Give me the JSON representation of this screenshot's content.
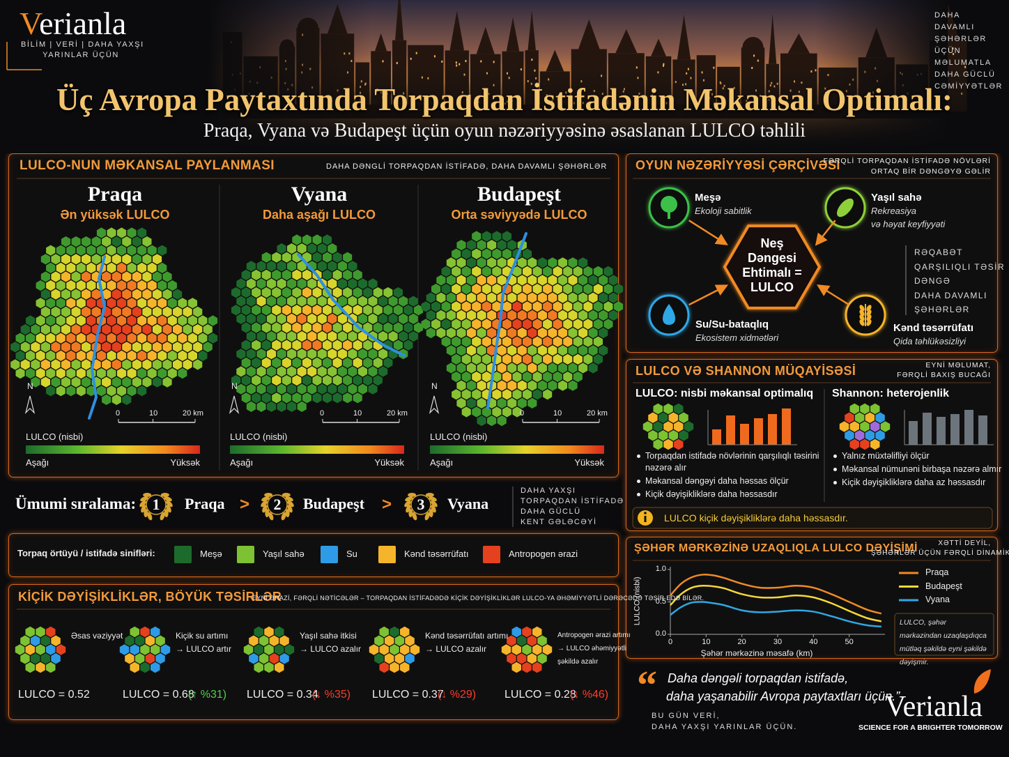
{
  "header": {
    "logo": "Verianla",
    "tagline": [
      "BİLİM | VERİ | DAHA YAXŞI",
      "YARINLAR ÜÇÜN"
    ],
    "side_note": [
      "DAHA",
      "DAVAMLI",
      "ŞƏHƏRLƏR",
      "ÜÇÜN",
      "MƏLUMATLA",
      "DAHA GÜCLÜ",
      "CƏMİYYƏTLƏR"
    ],
    "title": "Üç Avropa Paytaxtında Torpaqdan İstifadənin Məkansal Optimalı:",
    "subtitle": "Praqa, Vyana və Budapeşt üçün oyun nəzəriyyəsinə əsaslanan LULCO təhlili"
  },
  "distribution": {
    "title": "LULCO-NUN MƏKANSAL PAYLANMASI",
    "note": "DAHA DƏNGLİ TORPAQDAN İSTİFADƏ, DAHA DAVAMLI ŞƏHƏRLƏR",
    "maps": [
      {
        "city": "Praqa",
        "label": "Ən yüksək LULCO"
      },
      {
        "city": "Vyana",
        "label": "Daha aşağı LULCO"
      },
      {
        "city": "Budapeşt",
        "label": "Orta səviyyədə LULCO"
      }
    ],
    "north": "N",
    "scale_labels": [
      "0",
      "10",
      "20 km"
    ],
    "legend_title": "LULCO (nisbi)",
    "low": "Aşağı",
    "high": "Yüksək"
  },
  "ranking": {
    "label": "Ümumi sıralama:",
    "separator": ">",
    "items": [
      {
        "rank": "1",
        "city": "Praqa"
      },
      {
        "rank": "2",
        "city": "Budapeşt"
      },
      {
        "rank": "3",
        "city": "Vyana"
      }
    ],
    "note": [
      "DAHA YAXŞI",
      "TORPAQDAN İSTİFADƏ",
      "DAHA GÜCLÜ",
      "KENT GƏLƏCƏYİ"
    ]
  },
  "classes": {
    "label": "Torpaq örtüyü / istifadə sinifləri:",
    "items": [
      {
        "name": "Meşə",
        "color": "#1d6b2c"
      },
      {
        "name": "Yaşıl sahə",
        "color": "#7cc232"
      },
      {
        "name": "Su",
        "color": "#2e9be6"
      },
      {
        "name": "Kənd təsərrüfatı",
        "color": "#f5b42a"
      },
      {
        "name": "Antropogen ərazi",
        "color": "#e5411e"
      }
    ]
  },
  "scenarios": {
    "title": "KİÇİK DƏYİŞİKLİKLƏR, BÖYÜK TƏSİRLƏR",
    "note": "EYNİ ƏRAZİ, FƏRQLİ NƏTİCƏLƏR – TORPAQDAN İSTİFADƏDƏ KİÇİK DƏYİŞİKLİKLƏR LULCO-YA ƏHƏMİYYƏTLİ DƏRƏCƏDƏ TƏSİR EDƏ BİLƏR.",
    "items": [
      {
        "caption": [
          "Əsas vəziyyət"
        ],
        "value": "LULCO = 0.52"
      },
      {
        "caption": [
          "Kiçik su artımı",
          "→ LULCO artır"
        ],
        "value": "LULCO = 0.68",
        "change": "(↑ %31)",
        "change_color": "#4cd24a"
      },
      {
        "caption": [
          "Yaşıl sahə itkisi",
          "→ LULCO azalır"
        ],
        "value": "LULCO = 0.34",
        "change": "(↓ %35)",
        "change_color": "#ff3b2a"
      },
      {
        "caption": [
          "Kənd təsərrüfatı artımı",
          "→ LULCO azalır"
        ],
        "value": "LULCO = 0.37",
        "change": "(↓ %29)",
        "change_color": "#ff3b2a"
      },
      {
        "caption": [
          "Antropogen ərazi artımı",
          "→ LULCO əhəmiyyətli",
          "şəkildə azalır"
        ],
        "value": "LULCO = 0.28",
        "change": "(↓ %46)",
        "change_color": "#ff3b2a"
      }
    ]
  },
  "game": {
    "title": "OYUN NƏZƏRİYYƏSİ ÇƏRÇİVƏSİ",
    "note": [
      "FƏRQLİ TORPAQDAN İSTİFADƏ NÖVLƏRİ",
      "ORTAQ BİR DƏNGƏYƏ GƏLİR"
    ],
    "center": [
      "Neş",
      "Dəngesi",
      "Ehtimalı =",
      "LULCO"
    ],
    "players": [
      {
        "name": "Meşə",
        "desc": [
          "Ekoloji sabitlik"
        ]
      },
      {
        "name": "Yaşıl sahə",
        "desc": [
          "Rekreasiya",
          "və həyat keyfiyyəti"
        ]
      },
      {
        "name": "Su/Su-bataqlıq",
        "desc": [
          "Ekosistem xidmətləri"
        ]
      },
      {
        "name": "Kənd təsərrüfatı",
        "desc": [
          "Qida təhlükəsizliyi"
        ]
      }
    ],
    "concepts": [
      "RƏQABƏT",
      "QARŞILIQLI TƏSİR",
      "DƏNGƏ",
      "DAHA DAVAMLI",
      "ŞƏHƏRLƏR"
    ]
  },
  "comparison": {
    "title": "LULCO VƏ SHANNON MÜQAYİSƏSİ",
    "note": [
      "EYNİ MƏLUMAT,",
      "FƏRQLİ BAXIŞ BUCAĞI"
    ],
    "columns": [
      {
        "heading": "LULCO: nisbi məkansal optimalıq",
        "bullets": [
          "Torpaqdan istifadə növlərinin qarşılıqlı təsirini nəzərə alır",
          "Məkansal dəngəyi daha həssas ölçür",
          "Kiçik dəyişikliklərə daha həssasdır"
        ]
      },
      {
        "heading": "Shannon: heterojenlik",
        "bullets": [
          "Yalnız müxtəlifliyi ölçür",
          "Məkansal nümunəni birbaşa nəzərə almır",
          "Kiçik dəyişikliklərə daha az həssasdır"
        ]
      }
    ],
    "callout": "LULCO kiçik dəyişikliklərə daha həssasdır."
  },
  "chart_data": {
    "type": "line",
    "title": "ŞƏHƏR MƏRKƏZİNƏ UZAQLIQLA LULCO DƏYİŞİMİ",
    "note": [
      "XƏTTİ DEYİL,",
      "ŞƏHƏRLƏR ÜÇÜN FƏRQLİ DİNAMİKA"
    ],
    "x_label": "Şəhər mərkəzinə məsafə (km)",
    "y_label": "LULCO (nisbi)",
    "x": [
      0,
      3,
      6,
      9,
      12,
      15,
      20,
      25,
      30,
      35,
      40,
      45,
      50,
      55,
      59
    ],
    "series": [
      {
        "name": "Praqa",
        "color": "#f08a24",
        "values": [
          0.6,
          0.78,
          0.88,
          0.92,
          0.91,
          0.87,
          0.78,
          0.72,
          0.72,
          0.75,
          0.72,
          0.62,
          0.5,
          0.38,
          0.32
        ]
      },
      {
        "name": "Budapeşt",
        "color": "#f5d83a",
        "values": [
          0.45,
          0.62,
          0.72,
          0.75,
          0.74,
          0.71,
          0.62,
          0.57,
          0.57,
          0.6,
          0.57,
          0.48,
          0.36,
          0.25,
          0.2
        ]
      },
      {
        "name": "Vyana",
        "color": "#2ea8e6",
        "values": [
          0.3,
          0.42,
          0.49,
          0.5,
          0.48,
          0.45,
          0.37,
          0.34,
          0.35,
          0.37,
          0.35,
          0.28,
          0.2,
          0.14,
          0.12
        ]
      }
    ],
    "xlim": [
      0,
      60
    ],
    "xticks": [
      0,
      10,
      20,
      30,
      40,
      50
    ],
    "ylim": [
      0,
      1
    ],
    "yticks": [
      {
        "value": 0,
        "label": "0.0"
      },
      {
        "value": 0.5,
        "label": "0.5"
      },
      {
        "value": 1,
        "label": "1.0"
      }
    ],
    "legend": "right",
    "annotation": "LULCO, şəhər mərkəzindan uzaqlaşdıqca mütləq şəkildə eyni şəkildə dəyişmir."
  },
  "footer": {
    "quote_mark": "“",
    "quote": [
      "Daha dəngəli torpaqdan istifadə,",
      "daha yaşanabilir Avropa paytaxtları üçün.”"
    ],
    "closing": [
      "BU GÜN VERİ,",
      "DAHA YAXŞI YARINLAR ÜÇÜN."
    ],
    "logo": "Verianla",
    "tagline": "SCIENCE FOR A BRIGHTER TOMORROW"
  }
}
